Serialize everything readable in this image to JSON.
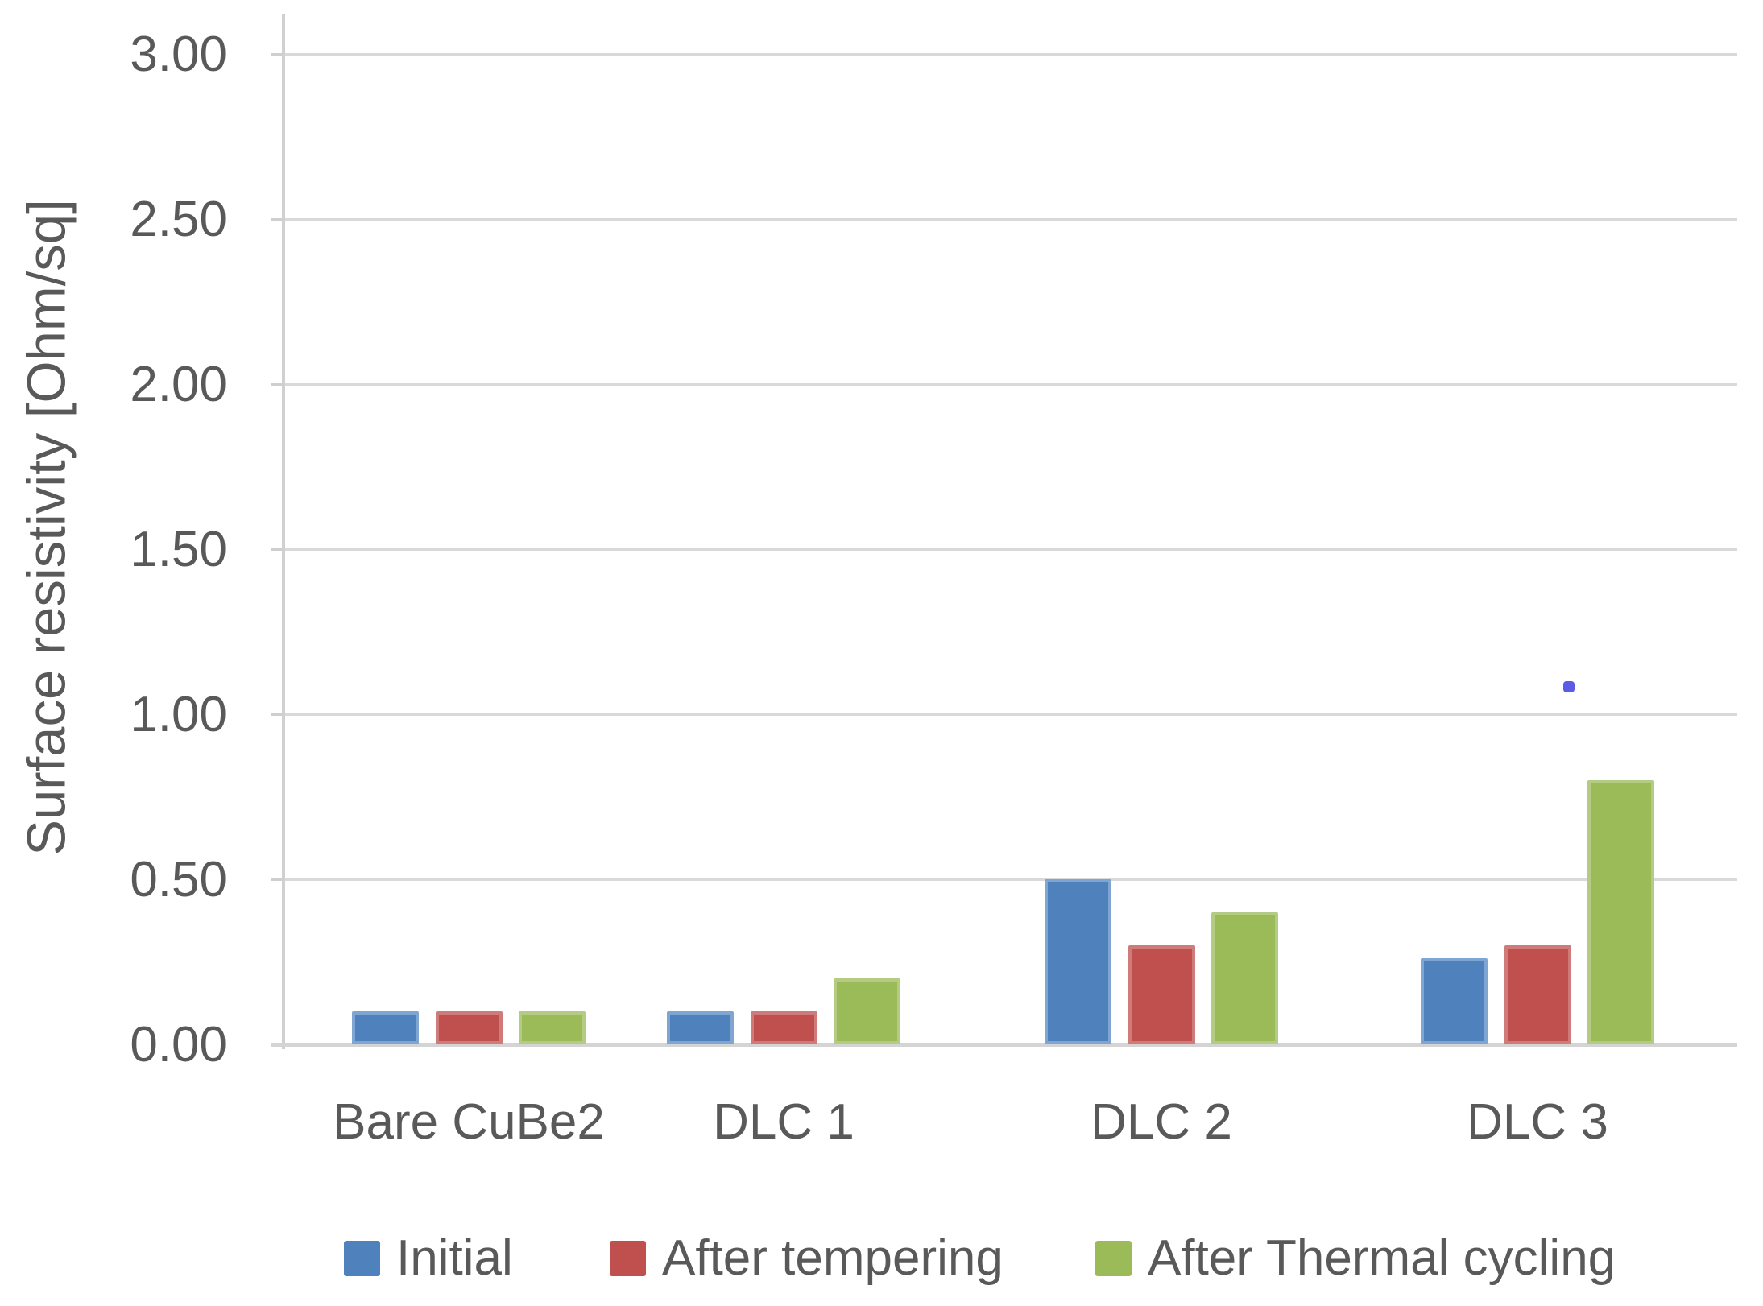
{
  "chart_data": {
    "type": "bar",
    "title": "",
    "xlabel": "",
    "ylabel": "Surface resistivity [Ohm/sq]",
    "ylim": [
      0,
      3.12
    ],
    "ytick_step": 0.5,
    "yticks": [
      "0.00",
      "0.50",
      "1.00",
      "1.50",
      "2.00",
      "2.50",
      "3.00"
    ],
    "grid": "horizontal",
    "legend_position": "bottom",
    "categories": [
      "Bare CuBe2",
      "DLC 1",
      "DLC 2",
      "DLC 3"
    ],
    "series": [
      {
        "name": "Initial",
        "color": "#4f81bd",
        "values": [
          0.1,
          0.1,
          0.5,
          0.26
        ]
      },
      {
        "name": "After tempering",
        "color": "#c0504d",
        "values": [
          0.1,
          0.1,
          0.3,
          0.3
        ]
      },
      {
        "name": "After Thermal cycling",
        "color": "#9bbb59",
        "values": [
          0.1,
          0.2,
          0.4,
          0.8
        ]
      }
    ],
    "annotations": [
      {
        "kind": "stray-dot",
        "category": "DLC 3",
        "value_approx": 1.08,
        "color": "#5b5be6"
      }
    ]
  },
  "colors": {
    "gridline": "#d9d9d9",
    "axis": "#d0d0d0",
    "text": "#595959",
    "background": "#ffffff"
  }
}
